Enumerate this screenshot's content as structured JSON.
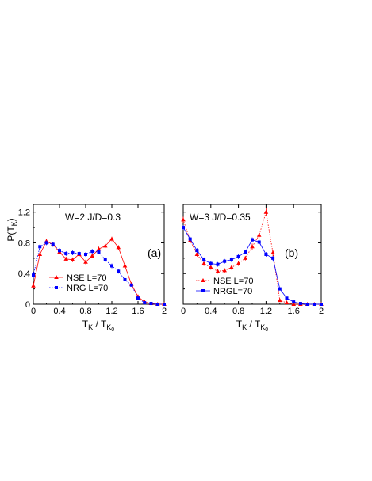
{
  "figure": {
    "ylabel": "P(T_K)",
    "xlabel": "T_K / T_K0"
  },
  "chart_data": [
    {
      "type": "line",
      "panel_label": "(a)",
      "annotation": "W=2  J/D=0.3",
      "xlabel": "T_K / T_K0",
      "ylabel": "P(T_K)",
      "xlim": [
        0,
        2
      ],
      "ylim": [
        0,
        1.3
      ],
      "xticks": [
        "0",
        "0.4",
        "0.8",
        "1.2",
        "1.6",
        "2"
      ],
      "yticks": [
        "0",
        "0.4",
        "0.8",
        "1.2"
      ],
      "legend_position": "bottom-left",
      "series": [
        {
          "name": "NSE  L=70",
          "color": "#ff0000",
          "marker": "triangle",
          "line": "solid",
          "x": [
            0.0,
            0.1,
            0.2,
            0.3,
            0.4,
            0.5,
            0.6,
            0.7,
            0.8,
            0.9,
            1.0,
            1.1,
            1.2,
            1.3,
            1.4,
            1.5,
            1.6,
            1.7,
            1.8,
            1.9,
            2.0
          ],
          "y": [
            0.24,
            0.65,
            0.82,
            0.78,
            0.68,
            0.59,
            0.58,
            0.65,
            0.55,
            0.63,
            0.72,
            0.76,
            0.85,
            0.74,
            0.5,
            0.26,
            0.1,
            0.03,
            0.01,
            0.0,
            0.0
          ],
          "err": [
            0.04,
            0.03,
            0.03,
            0.03,
            0.03,
            0.03,
            0.03,
            0.03,
            0.03,
            0.03,
            0.03,
            0.03,
            0.03,
            0.03,
            0.03,
            0.02,
            0.01,
            0.01,
            0.0,
            0.0,
            0.0
          ]
        },
        {
          "name": "NRG L=70",
          "color": "#0000ff",
          "marker": "square",
          "line": "dotted",
          "x": [
            0.0,
            0.1,
            0.2,
            0.3,
            0.4,
            0.5,
            0.6,
            0.7,
            0.8,
            0.9,
            1.0,
            1.1,
            1.2,
            1.3,
            1.4,
            1.5,
            1.6,
            1.7,
            1.8,
            1.9,
            2.0
          ],
          "y": [
            0.38,
            0.75,
            0.8,
            0.78,
            0.7,
            0.66,
            0.67,
            0.66,
            0.65,
            0.69,
            0.68,
            0.58,
            0.5,
            0.43,
            0.32,
            0.25,
            0.08,
            0.02,
            0.01,
            0.0,
            0.0
          ],
          "err": [
            0.04,
            0.03,
            0.03,
            0.03,
            0.03,
            0.03,
            0.03,
            0.03,
            0.03,
            0.03,
            0.03,
            0.03,
            0.03,
            0.03,
            0.02,
            0.02,
            0.01,
            0.01,
            0.0,
            0.0,
            0.0
          ]
        }
      ]
    },
    {
      "type": "line",
      "panel_label": "(b)",
      "annotation": "W=3  J/D=0.35",
      "xlabel": "T_K / T_K0",
      "ylabel": "",
      "xlim": [
        0,
        2
      ],
      "ylim": [
        0,
        1.3
      ],
      "xticks": [
        "0",
        "0.4",
        "0.8",
        "1.2",
        "1.6",
        "2"
      ],
      "yticks": [],
      "legend_position": "bottom-left",
      "series": [
        {
          "name": "NSE  L=70",
          "color": "#ff0000",
          "marker": "triangle",
          "line": "dotted",
          "x": [
            0.0,
            0.1,
            0.2,
            0.3,
            0.4,
            0.5,
            0.6,
            0.7,
            0.8,
            0.9,
            1.0,
            1.1,
            1.2,
            1.3,
            1.4,
            1.5,
            1.6,
            1.7,
            1.8,
            1.9,
            2.0
          ],
          "y": [
            1.1,
            0.83,
            0.65,
            0.53,
            0.48,
            0.43,
            0.44,
            0.48,
            0.53,
            0.6,
            0.75,
            0.9,
            1.2,
            0.67,
            0.05,
            0.02,
            0.0,
            0.0,
            0.0,
            0.0,
            0.0
          ],
          "err": [
            0.04,
            0.04,
            0.03,
            0.03,
            0.03,
            0.03,
            0.03,
            0.03,
            0.03,
            0.03,
            0.04,
            0.04,
            0.05,
            0.04,
            0.01,
            0.01,
            0.0,
            0.0,
            0.0,
            0.0,
            0.0
          ]
        },
        {
          "name": "NRGL=70",
          "color": "#0000ff",
          "marker": "square",
          "line": "solid",
          "x": [
            0.0,
            0.1,
            0.2,
            0.3,
            0.4,
            0.5,
            0.6,
            0.7,
            0.8,
            0.9,
            1.0,
            1.1,
            1.2,
            1.3,
            1.4,
            1.5,
            1.6,
            1.7,
            1.8,
            1.9,
            2.0
          ],
          "y": [
            1.0,
            0.85,
            0.7,
            0.58,
            0.53,
            0.52,
            0.56,
            0.58,
            0.62,
            0.68,
            0.84,
            0.81,
            0.65,
            0.6,
            0.2,
            0.08,
            0.03,
            0.01,
            0.0,
            0.0,
            0.0
          ],
          "err": [
            0.03,
            0.03,
            0.03,
            0.03,
            0.03,
            0.03,
            0.03,
            0.03,
            0.03,
            0.03,
            0.03,
            0.03,
            0.03,
            0.03,
            0.02,
            0.01,
            0.01,
            0.0,
            0.0,
            0.0,
            0.0
          ]
        }
      ]
    }
  ]
}
